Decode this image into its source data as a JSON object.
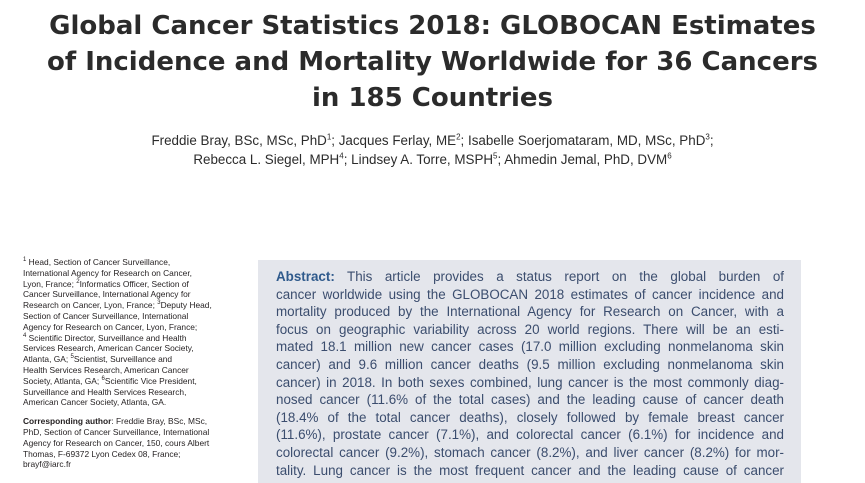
{
  "title": {
    "lines": [
      "Global Cancer Statistics 2018: GLOBOCAN Estimates",
      "of Incidence and Mortality Worldwide for 36 Cancers",
      "in 185 Countries"
    ]
  },
  "authors": {
    "line1": [
      {
        "name": "Freddie Bray, BSc, MSc, PhD",
        "sup": "1",
        "sep": "; "
      },
      {
        "name": "Jacques Ferlay, ME",
        "sup": "2",
        "sep": "; "
      },
      {
        "name": "Isabelle Soerjomataram, MD, MSc, PhD",
        "sup": "3",
        "sep": ";"
      }
    ],
    "line2": [
      {
        "name": "Rebecca L. Siegel, MPH",
        "sup": "4",
        "sep": "; "
      },
      {
        "name": "Lindsey A. Torre, MSPH",
        "sup": "5",
        "sep": "; "
      },
      {
        "name": "Ahmedin Jemal, PhD, DVM",
        "sup": "6",
        "sep": ""
      }
    ]
  },
  "affiliations": {
    "lines": [
      {
        "sup": "1",
        "text": " Head, Section of Cancer Surveillance,"
      },
      {
        "sup": "",
        "text": "International Agency for Research on Cancer,"
      },
      {
        "sup": "",
        "text": "Lyon, France; ",
        "sup2": "2",
        "text2": "Informatics Officer, Section of"
      },
      {
        "sup": "",
        "text": "Cancer Surveillance, International Agency for"
      },
      {
        "sup": "",
        "text": "Research on Cancer, Lyon, France; ",
        "sup2": "3",
        "text2": "Deputy Head,"
      },
      {
        "sup": "",
        "text": "Section of Cancer Surveillance, International"
      },
      {
        "sup": "",
        "text": "Agency for Research on Cancer, Lyon, France;"
      },
      {
        "sup": "4",
        "text": " Scientific Director, Surveillance and Health"
      },
      {
        "sup": "",
        "text": "Services Research, American Cancer Society,"
      },
      {
        "sup": "",
        "text": "Atlanta, GA; ",
        "sup2": "5",
        "text2": "Scientist, Surveillance and"
      },
      {
        "sup": "",
        "text": "Health Services Research, American Cancer"
      },
      {
        "sup": "",
        "text": "Society, Atlanta, GA; ",
        "sup2": "6",
        "text2": "Scientific Vice President,"
      },
      {
        "sup": "",
        "text": "Surveillance and Health Services Research,"
      },
      {
        "sup": "",
        "text": "American Cancer Society, Atlanta, GA."
      }
    ],
    "corresponding_label": "Corresponding author",
    "corresponding_lines": [
      ": Freddie Bray, BSc, MSc,",
      "PhD, Section of Cancer Surveillance, International",
      "Agency for Research on Cancer, 150, cours Albert",
      "Thomas, F-69372 Lyon Cedex 08, France;",
      "brayf@iarc.fr"
    ]
  },
  "abstract": {
    "label": "Abstract:",
    "lines": [
      " This article provides a status report on the global burden of",
      "cancer worldwide using the GLOBOCAN 2018 estimates of cancer incidence and",
      "mortality produced by the International Agency for Research on Cancer, with a",
      "focus on geographic variability across 20 world regions. There will be an esti-",
      "mated 18.1 million new cancer cases (17.0 million excluding nonmelanoma skin",
      "cancer) and 9.6 million cancer deaths (9.5 million excluding nonmelanoma skin",
      "cancer) in 2018. In both sexes combined, lung cancer is the most commonly diag-",
      "nosed cancer (11.6% of the total cases) and the leading cause of cancer death",
      "(18.4% of the total cancer deaths), closely followed by female breast cancer",
      "(11.6%), prostate cancer (7.1%), and colorectal cancer (6.1%) for incidence and",
      "colorectal cancer (9.2%), stomach cancer (8.2%), and liver cancer (8.2%) for mor-",
      "tality. Lung cancer is the most frequent cancer and the leading cause of cancer"
    ]
  }
}
